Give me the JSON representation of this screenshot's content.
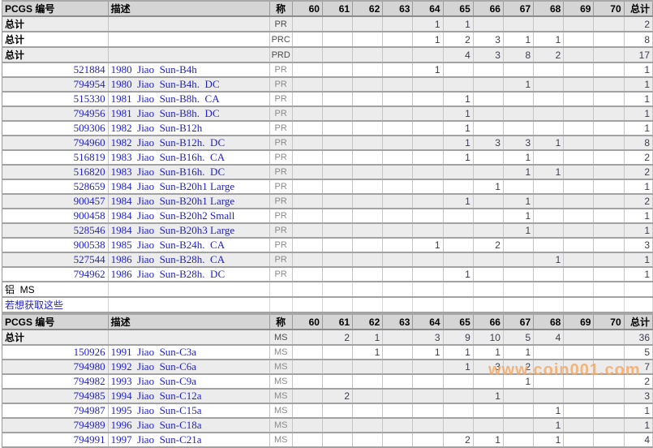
{
  "columns": [
    "PCGS 编号",
    "描述",
    "称",
    "60",
    "61",
    "62",
    "63",
    "64",
    "65",
    "66",
    "67",
    "68",
    "69",
    "70",
    "总计"
  ],
  "material_label": "铝  MS",
  "link_label": "若想获取这些",
  "watermark": "www.coin001.com",
  "colors": {
    "link_blue": "#2121cc",
    "header_bg": "#d5d5d5",
    "stripe_gray": "#ececec",
    "border_dark": "#a2a2a2",
    "border_light": "#c6c6c6",
    "grade_text": "#8a8a8a",
    "number_text": "#3c3c50",
    "watermark_orange": "#f3a762"
  },
  "tables": [
    {
      "summaries": [
        {
          "label": "总计",
          "grade": "PR",
          "cols": [
            "",
            "",
            "",
            "",
            "1",
            "1",
            "",
            "",
            "",
            "",
            ""
          ],
          "total": "2"
        },
        {
          "label": "总计",
          "grade": "PRC",
          "cols": [
            "",
            "",
            "",
            "",
            "1",
            "2",
            "3",
            "1",
            "1",
            "",
            ""
          ],
          "total": "8"
        },
        {
          "label": "总计",
          "grade": "PRD",
          "cols": [
            "",
            "",
            "",
            "",
            "",
            "4",
            "3",
            "8",
            "2",
            "",
            ""
          ],
          "total": "17"
        }
      ],
      "rows": [
        {
          "pcgs": "521884",
          "desc": "1980  Jiao  Sun-B4h",
          "grade": "PR",
          "cols": [
            "",
            "",
            "",
            "",
            "1",
            "",
            "",
            "",
            "",
            "",
            ""
          ],
          "total": "1"
        },
        {
          "pcgs": "794954",
          "desc": "1980  Jiao  Sun-B4h.  DC",
          "grade": "PR",
          "cols": [
            "",
            "",
            "",
            "",
            "",
            "",
            "",
            "1",
            "",
            "",
            ""
          ],
          "total": "1"
        },
        {
          "pcgs": "515330",
          "desc": "1981  Jiao  Sun-B8h.  CA",
          "grade": "PR",
          "cols": [
            "",
            "",
            "",
            "",
            "",
            "1",
            "",
            "",
            "",
            "",
            ""
          ],
          "total": "1"
        },
        {
          "pcgs": "794956",
          "desc": "1981  Jiao  Sun-B8h.  DC",
          "grade": "PR",
          "cols": [
            "",
            "",
            "",
            "",
            "",
            "1",
            "",
            "",
            "",
            "",
            ""
          ],
          "total": "1"
        },
        {
          "pcgs": "509306",
          "desc": "1982  Jiao  Sun-B12h",
          "grade": "PR",
          "cols": [
            "",
            "",
            "",
            "",
            "",
            "1",
            "",
            "",
            "",
            "",
            ""
          ],
          "total": "1"
        },
        {
          "pcgs": "794960",
          "desc": "1982  Jiao  Sun-B12h.  DC",
          "grade": "PR",
          "cols": [
            "",
            "",
            "",
            "",
            "",
            "1",
            "3",
            "3",
            "1",
            "",
            ""
          ],
          "total": "8"
        },
        {
          "pcgs": "516819",
          "desc": "1983  Jiao  Sun-B16h.  CA",
          "grade": "PR",
          "cols": [
            "",
            "",
            "",
            "",
            "",
            "1",
            "",
            "1",
            "",
            "",
            ""
          ],
          "total": "2"
        },
        {
          "pcgs": "516820",
          "desc": "1983  Jiao  Sun-B16h.  DC",
          "grade": "PR",
          "cols": [
            "",
            "",
            "",
            "",
            "",
            "",
            "",
            "1",
            "1",
            "",
            ""
          ],
          "total": "2"
        },
        {
          "pcgs": "528659",
          "desc": "1984  Jiao  Sun-B20h1 Large",
          "grade": "PR",
          "cols": [
            "",
            "",
            "",
            "",
            "",
            "",
            "1",
            "",
            "",
            "",
            ""
          ],
          "total": "1"
        },
        {
          "pcgs": "900457",
          "desc": "1984  Jiao  Sun-B20h1 Large",
          "grade": "PR",
          "cols": [
            "",
            "",
            "",
            "",
            "",
            "1",
            "",
            "1",
            "",
            "",
            ""
          ],
          "total": "2"
        },
        {
          "pcgs": "900458",
          "desc": "1984  Jiao  Sun-B20h2 Small",
          "grade": "PR",
          "cols": [
            "",
            "",
            "",
            "",
            "",
            "",
            "",
            "1",
            "",
            "",
            ""
          ],
          "total": "1"
        },
        {
          "pcgs": "528546",
          "desc": "1984  Jiao  Sun-B20h3 Large",
          "grade": "PR",
          "cols": [
            "",
            "",
            "",
            "",
            "",
            "",
            "",
            "1",
            "",
            "",
            ""
          ],
          "total": "1"
        },
        {
          "pcgs": "900538",
          "desc": "1985  Jiao  Sun-B24h.  CA",
          "grade": "PR",
          "cols": [
            "",
            "",
            "",
            "",
            "1",
            "",
            "2",
            "",
            "",
            "",
            ""
          ],
          "total": "3"
        },
        {
          "pcgs": "527544",
          "desc": "1986  Jiao  Sun-B28h.  CA",
          "grade": "PR",
          "cols": [
            "",
            "",
            "",
            "",
            "",
            "",
            "",
            "",
            "1",
            "",
            ""
          ],
          "total": "1"
        },
        {
          "pcgs": "794962",
          "desc": "1986  Jiao  Sun-B28h.  DC",
          "grade": "PR",
          "cols": [
            "",
            "",
            "",
            "",
            "",
            "1",
            "",
            "",
            "",
            "",
            ""
          ],
          "total": "1"
        }
      ]
    },
    {
      "summaries": [
        {
          "label": "总计",
          "grade": "MS",
          "cols": [
            "",
            "2",
            "1",
            "",
            "3",
            "9",
            "10",
            "5",
            "4",
            "",
            ""
          ],
          "total": "36"
        }
      ],
      "rows": [
        {
          "pcgs": "150926",
          "desc": "1991  Jiao  Sun-C3a",
          "grade": "MS",
          "cols": [
            "",
            "",
            "1",
            "",
            "1",
            "1",
            "1",
            "1",
            "",
            "",
            ""
          ],
          "total": "5"
        },
        {
          "pcgs": "794980",
          "desc": "1992  Jiao  Sun-C6a",
          "grade": "MS",
          "cols": [
            "",
            "",
            "",
            "",
            "",
            "1",
            "3",
            "2",
            "",
            "",
            ""
          ],
          "total": "7"
        },
        {
          "pcgs": "794982",
          "desc": "1993  Jiao  Sun-C9a",
          "grade": "MS",
          "cols": [
            "",
            "",
            "",
            "",
            "",
            "",
            "",
            "1",
            "",
            "",
            ""
          ],
          "total": "2"
        },
        {
          "pcgs": "794985",
          "desc": "1994  Jiao  Sun-C12a",
          "grade": "MS",
          "cols": [
            "",
            "2",
            "",
            "",
            "",
            "",
            "1",
            "",
            "",
            "",
            ""
          ],
          "total": "3"
        },
        {
          "pcgs": "794987",
          "desc": "1995  Jiao  Sun-C15a",
          "grade": "MS",
          "cols": [
            "",
            "",
            "",
            "",
            "",
            "",
            "",
            "",
            "1",
            "",
            ""
          ],
          "total": "1"
        },
        {
          "pcgs": "794989",
          "desc": "1996  Jiao  Sun-C18a",
          "grade": "MS",
          "cols": [
            "",
            "",
            "",
            "",
            "",
            "",
            "",
            "",
            "1",
            "",
            ""
          ],
          "total": "1"
        },
        {
          "pcgs": "794991",
          "desc": "1997  Jiao  Sun-C21a",
          "grade": "MS",
          "cols": [
            "",
            "",
            "",
            "",
            "",
            "2",
            "1",
            "",
            "1",
            "",
            ""
          ],
          "total": "4"
        }
      ]
    }
  ]
}
